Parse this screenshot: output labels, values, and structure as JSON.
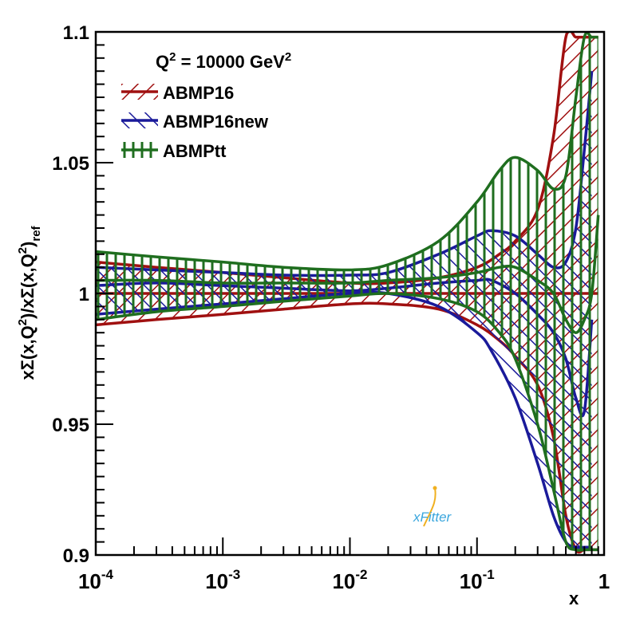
{
  "chart_data": {
    "type": "area",
    "title": "",
    "annotation": {
      "main": "Q",
      "sup1": "2",
      "rest": " = 10000 GeV",
      "sup2": "2"
    },
    "xlabel": "x",
    "ylabel": {
      "text1": "xΣ(x,Q",
      "sup1": "2",
      "text2": ")/xΣ(x,Q",
      "sup2": "2",
      "text3": ")",
      "sub": "ref"
    },
    "xscale": "log",
    "xlim": [
      0.0001,
      1
    ],
    "ylim": [
      0.9,
      1.1
    ],
    "x_tick_labels": [
      {
        "base": "10",
        "exp": "-4"
      },
      {
        "base": "10",
        "exp": "-3"
      },
      {
        "base": "10",
        "exp": "-2"
      },
      {
        "base": "10",
        "exp": "-1"
      },
      {
        "base": "1",
        "exp": ""
      }
    ],
    "y_ticks": [
      {
        "value": 0.9,
        "label": "0.9"
      },
      {
        "value": 0.95,
        "label": "0.95"
      },
      {
        "value": 1.0,
        "label": "1"
      },
      {
        "value": 1.05,
        "label": "1.05"
      },
      {
        "value": 1.1,
        "label": "1.1"
      }
    ],
    "legend_position": "top-left",
    "series": [
      {
        "name": "ABMP16",
        "color": "#a01010",
        "hatch": "diagonal",
        "x": [
          0.0001,
          0.0003,
          0.001,
          0.003,
          0.01,
          0.02,
          0.05,
          0.1,
          0.15,
          0.2,
          0.3,
          0.4,
          0.5,
          0.6,
          0.7,
          0.8,
          0.9
        ],
        "upper": [
          1.012,
          1.01,
          1.008,
          1.006,
          1.004,
          1.004,
          1.006,
          1.01,
          1.015,
          1.02,
          1.032,
          1.06,
          1.098,
          1.098,
          1.098,
          1.098,
          1.098
        ],
        "central": [
          1.0,
          1.0,
          1.0,
          1.0,
          1.0,
          1.0,
          1.0,
          1.0,
          1.0,
          1.0,
          1.0,
          1.0,
          1.0,
          1.0,
          1.0,
          1.0,
          1.0
        ],
        "lower": [
          0.988,
          0.99,
          0.992,
          0.994,
          0.996,
          0.996,
          0.994,
          0.988,
          0.982,
          0.976,
          0.965,
          0.945,
          0.915,
          0.902,
          0.902,
          0.902,
          0.902
        ]
      },
      {
        "name": "ABMP16new",
        "color": "#1a1a9a",
        "hatch": "anti-diagonal",
        "x": [
          0.0001,
          0.0003,
          0.001,
          0.003,
          0.01,
          0.02,
          0.05,
          0.1,
          0.13,
          0.2,
          0.3,
          0.4,
          0.5,
          0.6,
          0.7,
          0.8
        ],
        "upper": [
          1.01,
          1.009,
          1.008,
          1.007,
          1.007,
          1.008,
          1.015,
          1.022,
          1.024,
          1.022,
          1.015,
          1.01,
          1.012,
          1.025,
          1.055,
          1.085
        ],
        "central": [
          1.003,
          1.004,
          1.003,
          1.002,
          1.001,
          1.002,
          1.004,
          1.005,
          1.005,
          1.0,
          0.992,
          0.985,
          0.975,
          0.96,
          0.955,
          0.99
        ],
        "lower": [
          0.992,
          0.994,
          0.996,
          0.998,
          1.0,
          1.0,
          0.995,
          0.985,
          0.978,
          0.96,
          0.935,
          0.915,
          0.905,
          0.903,
          0.903,
          0.903
        ]
      },
      {
        "name": "ABMPtt",
        "color": "#1f6e1f",
        "hatch": "vertical",
        "x": [
          0.0001,
          0.0003,
          0.001,
          0.003,
          0.01,
          0.02,
          0.05,
          0.1,
          0.15,
          0.2,
          0.3,
          0.4,
          0.5,
          0.6,
          0.7,
          0.8,
          0.9
        ],
        "upper": [
          1.016,
          1.014,
          1.012,
          1.01,
          1.009,
          1.011,
          1.02,
          1.035,
          1.047,
          1.052,
          1.047,
          1.04,
          1.045,
          1.075,
          1.098,
          1.098,
          1.098
        ],
        "central": [
          1.005,
          1.005,
          1.004,
          1.004,
          1.004,
          1.005,
          1.006,
          1.008,
          1.01,
          1.01,
          1.005,
          1.0,
          0.99,
          0.985,
          0.99,
          1.0,
          1.03
        ],
        "lower": [
          0.99,
          0.993,
          0.995,
          0.997,
          0.999,
          1.0,
          0.998,
          0.993,
          0.985,
          0.975,
          0.95,
          0.925,
          0.905,
          0.902,
          0.902,
          0.902,
          0.902
        ]
      }
    ],
    "watermark": "xFitter"
  }
}
